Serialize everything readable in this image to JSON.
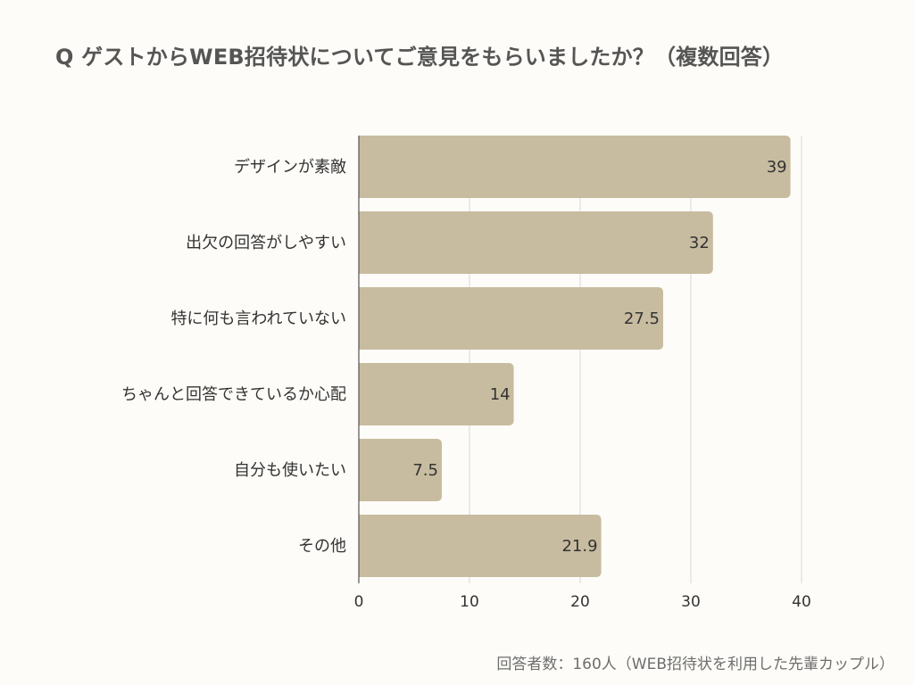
{
  "chart_data": {
    "type": "bar",
    "orientation": "horizontal",
    "title": "Q ゲストからWEB招待状についてご意見をもらいましたか？（複数回答）",
    "categories": [
      "デザインが素敵",
      "出欠の回答がしやすい",
      "特に何も言われていない",
      "ちゃんと回答できているか心配",
      "自分も使いたい",
      "その他"
    ],
    "values": [
      39,
      32,
      27.5,
      14,
      7.5,
      21.9
    ],
    "value_labels": [
      "39",
      "32",
      "27.5",
      "14",
      "7.5",
      "21.9"
    ],
    "xlim": [
      0,
      40
    ],
    "xticks": [
      "0",
      "10",
      "20",
      "30",
      "40"
    ],
    "grid": true,
    "legend": "none",
    "footnote": "回答者数：160人（WEB招待状を利用した先輩カップル）",
    "colors": {
      "bar": "#c8bca0",
      "grid": "#d9d9d9",
      "axis": "#555555",
      "background": "#fdfcf8"
    }
  }
}
